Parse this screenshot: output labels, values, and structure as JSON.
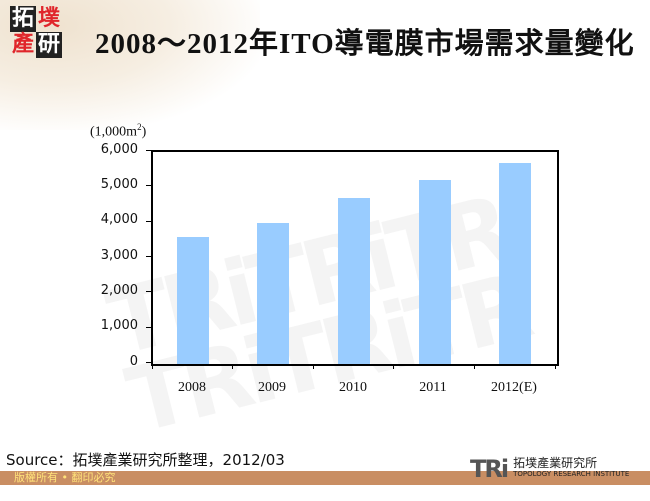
{
  "header": {
    "logo_chars": [
      "拓",
      "墣",
      "產",
      "研"
    ],
    "title": "2008～2012年ITO導電膜市場需求量變化"
  },
  "chart_data": {
    "type": "bar",
    "title": "2008～2012年ITO導電膜市場需求量變化",
    "xlabel": "",
    "ylabel": "(1,000m²)",
    "ylim": [
      0,
      6000
    ],
    "yticks": [
      "6,000",
      "5,000",
      "4,000",
      "3,000",
      "2,000",
      "1,000",
      "0"
    ],
    "categories": [
      "2008",
      "2009",
      "2010",
      "2011",
      "2012(E)"
    ],
    "values": [
      3600,
      4000,
      4700,
      5200,
      5700
    ],
    "bar_color": "#99ccff",
    "grid": false,
    "legend": null
  },
  "chart": {
    "unit_label": "(1,000m",
    "unit_sup": "2",
    "unit_close": ")"
  },
  "footer": {
    "source": "Source：拓墣產業研究所整理，2012/03",
    "copyright": "版權所有 • 翻印必究",
    "org_mark": "TRi",
    "org_name_cn": "拓墣產業研究所",
    "org_name_en": "TOPOLOGY RESEARCH INSTITUTE"
  },
  "colors": {
    "bar": "#99ccff",
    "footer_bar": "#c98e63",
    "copyright_text": "#ffe27a",
    "brand_red": "#e0262b"
  }
}
